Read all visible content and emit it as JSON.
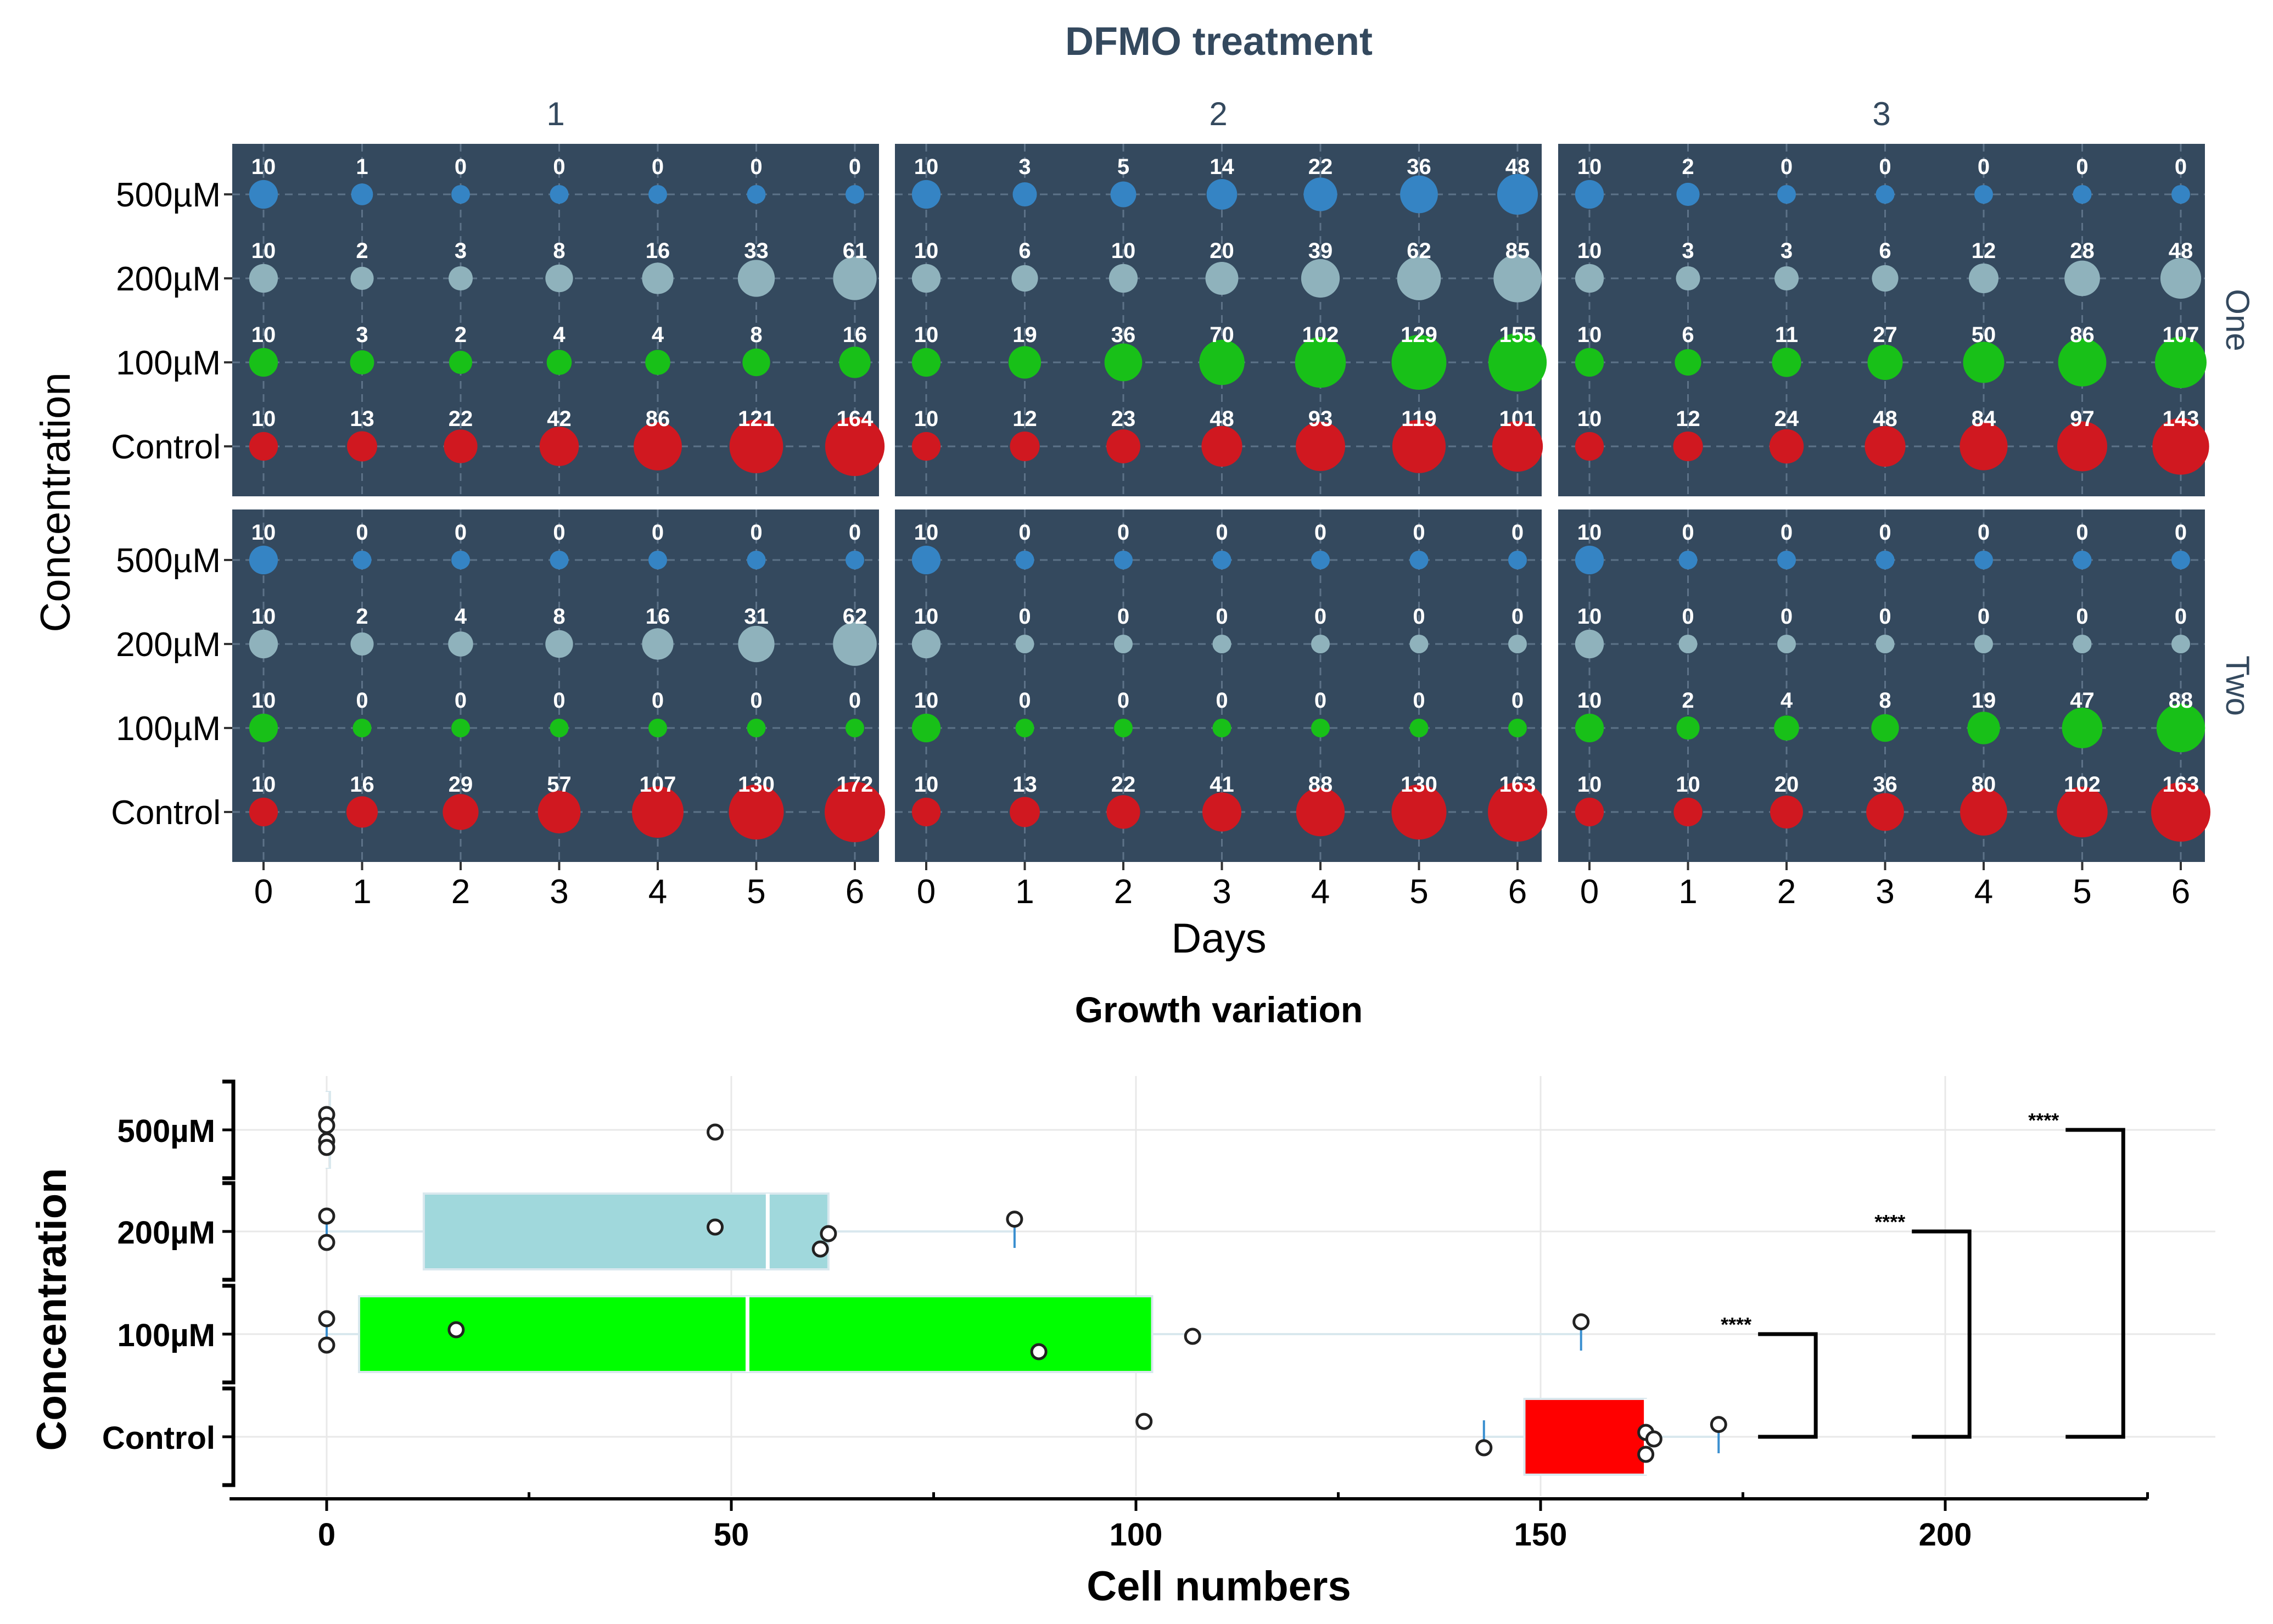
{
  "chart_data": [
    {
      "type": "scatter",
      "subtype": "faceted-bubble",
      "title": "DFMO treatment",
      "xlabel": "Days",
      "ylabel": "Concentration",
      "x": [
        0,
        1,
        2,
        3,
        4,
        5,
        6
      ],
      "x_tick_labels": [
        "0",
        "1",
        "2",
        "3",
        "4",
        "5",
        "6"
      ],
      "categories": [
        "500µM",
        "200µM",
        "100µM",
        "Control"
      ],
      "column_facets": [
        "1",
        "2",
        "3"
      ],
      "row_facets": [
        "One",
        "Two"
      ],
      "panel_background": "#34495e",
      "grid": true,
      "colors": {
        "500µM": "#3584c4",
        "200µM": "#8fb2bc",
        "100µM": "#18c018",
        "Control": "#d01820"
      },
      "panels": [
        {
          "row": "One",
          "col": "1",
          "series": [
            {
              "name": "500µM",
              "values": [
                10,
                1,
                0,
                0,
                0,
                0,
                0
              ]
            },
            {
              "name": "200µM",
              "values": [
                10,
                2,
                3,
                8,
                16,
                33,
                61
              ]
            },
            {
              "name": "100µM",
              "values": [
                10,
                3,
                2,
                4,
                4,
                8,
                16
              ]
            },
            {
              "name": "Control",
              "values": [
                10,
                13,
                22,
                42,
                86,
                121,
                164
              ]
            }
          ]
        },
        {
          "row": "One",
          "col": "2",
          "series": [
            {
              "name": "500µM",
              "values": [
                10,
                3,
                5,
                14,
                22,
                36,
                48
              ]
            },
            {
              "name": "200µM",
              "values": [
                10,
                6,
                10,
                20,
                39,
                62,
                85
              ]
            },
            {
              "name": "100µM",
              "values": [
                10,
                19,
                36,
                70,
                102,
                129,
                155
              ]
            },
            {
              "name": "Control",
              "values": [
                10,
                12,
                23,
                48,
                93,
                119,
                101
              ]
            }
          ]
        },
        {
          "row": "One",
          "col": "3",
          "series": [
            {
              "name": "500µM",
              "values": [
                10,
                2,
                0,
                0,
                0,
                0,
                0
              ]
            },
            {
              "name": "200µM",
              "values": [
                10,
                3,
                3,
                6,
                12,
                28,
                48
              ]
            },
            {
              "name": "100µM",
              "values": [
                10,
                6,
                11,
                27,
                50,
                86,
                107
              ]
            },
            {
              "name": "Control",
              "values": [
                10,
                12,
                24,
                48,
                84,
                97,
                143
              ]
            }
          ]
        },
        {
          "row": "Two",
          "col": "1",
          "series": [
            {
              "name": "500µM",
              "values": [
                10,
                0,
                0,
                0,
                0,
                0,
                0
              ]
            },
            {
              "name": "200µM",
              "values": [
                10,
                2,
                4,
                8,
                16,
                31,
                62
              ]
            },
            {
              "name": "100µM",
              "values": [
                10,
                0,
                0,
                0,
                0,
                0,
                0
              ]
            },
            {
              "name": "Control",
              "values": [
                10,
                16,
                29,
                57,
                107,
                130,
                172
              ]
            }
          ]
        },
        {
          "row": "Two",
          "col": "2",
          "series": [
            {
              "name": "500µM",
              "values": [
                10,
                0,
                0,
                0,
                0,
                0,
                0
              ]
            },
            {
              "name": "200µM",
              "values": [
                10,
                0,
                0,
                0,
                0,
                0,
                0
              ]
            },
            {
              "name": "100µM",
              "values": [
                10,
                0,
                0,
                0,
                0,
                0,
                0
              ]
            },
            {
              "name": "Control",
              "values": [
                10,
                13,
                22,
                41,
                88,
                130,
                163
              ]
            }
          ]
        },
        {
          "row": "Two",
          "col": "3",
          "series": [
            {
              "name": "500µM",
              "values": [
                10,
                0,
                0,
                0,
                0,
                0,
                0
              ]
            },
            {
              "name": "200µM",
              "values": [
                10,
                0,
                0,
                0,
                0,
                0,
                0
              ]
            },
            {
              "name": "100µM",
              "values": [
                10,
                2,
                4,
                8,
                19,
                47,
                88
              ]
            },
            {
              "name": "Control",
              "values": [
                10,
                10,
                20,
                36,
                80,
                102,
                163
              ]
            }
          ]
        }
      ]
    },
    {
      "type": "box",
      "title": "Growth variation",
      "xlabel": "Cell numbers",
      "ylabel": "Concentration",
      "categories": [
        "500µM",
        "200µM",
        "100µM",
        "Control"
      ],
      "xlim": [
        -12,
        225
      ],
      "x_ticks": [
        0,
        50,
        100,
        150,
        200
      ],
      "x_tick_labels": [
        "0",
        "50",
        "100",
        "150",
        "200"
      ],
      "grid": true,
      "boxes": [
        {
          "name": "500µM",
          "min": 0,
          "q1": 0,
          "median": 0,
          "q3": 0,
          "max": 0,
          "points": [
            0,
            0,
            0,
            0,
            48
          ],
          "color": "#cccccc"
        },
        {
          "name": "200µM",
          "min": 0,
          "q1": 12,
          "median": 54.5,
          "q3": 62,
          "max": 85,
          "points": [
            0,
            0,
            48,
            61,
            62,
            85
          ],
          "color": "#a0d8dc"
        },
        {
          "name": "100µM",
          "min": 0,
          "q1": 4,
          "median": 52,
          "q3": 102,
          "max": 155,
          "points": [
            0,
            0,
            16,
            88,
            107,
            155
          ],
          "color": "#00ff00"
        },
        {
          "name": "Control",
          "min": 143,
          "q1": 148,
          "median": 163,
          "q3": 163,
          "max": 172,
          "points": [
            101,
            143,
            163,
            163,
            164,
            172
          ],
          "color": "#ff0000"
        }
      ],
      "significance": [
        {
          "compare": [
            "100µM",
            "Control"
          ],
          "label": "****"
        },
        {
          "compare": [
            "200µM",
            "Control"
          ],
          "label": "****"
        },
        {
          "compare": [
            "500µM",
            "Control"
          ],
          "label": "****"
        }
      ]
    }
  ]
}
